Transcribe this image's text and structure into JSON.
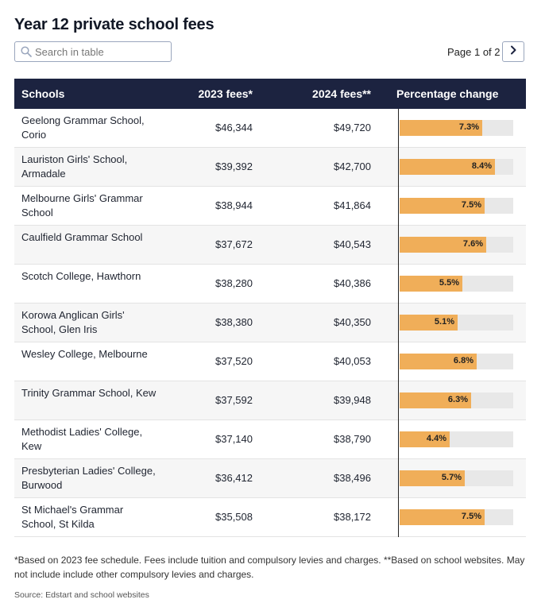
{
  "title": "Year 12 private school fees",
  "search": {
    "placeholder": "Search in table",
    "icon": "search-icon"
  },
  "pager": {
    "text": "Page 1 of 2",
    "next_icon": "chevron-right-icon"
  },
  "table": {
    "headers": {
      "school": "Schools",
      "fees_2023": "2023 fees*",
      "fees_2024": "2024 fees**",
      "pct": "Percentage change"
    },
    "bar_color": "#f0ae59",
    "rows": [
      {
        "school": "Geelong Grammar School, Corio",
        "fees_2023": "$46,344",
        "fees_2024": "$49,720",
        "pct_label": "7.3%",
        "pct": 7.3
      },
      {
        "school": "Lauriston Girls' School, Armadale",
        "fees_2023": "$39,392",
        "fees_2024": "$42,700",
        "pct_label": "8.4%",
        "pct": 8.4
      },
      {
        "school": "Melbourne Girls' Grammar School",
        "fees_2023": "$38,944",
        "fees_2024": "$41,864",
        "pct_label": "7.5%",
        "pct": 7.5
      },
      {
        "school": "Caulfield Grammar School",
        "fees_2023": "$37,672",
        "fees_2024": "$40,543",
        "pct_label": "7.6%",
        "pct": 7.6
      },
      {
        "school": "Scotch College, Hawthorn",
        "fees_2023": "$38,280",
        "fees_2024": "$40,386",
        "pct_label": "5.5%",
        "pct": 5.5
      },
      {
        "school": "Korowa Anglican Girls' School, Glen Iris",
        "fees_2023": "$38,380",
        "fees_2024": "$40,350",
        "pct_label": "5.1%",
        "pct": 5.1
      },
      {
        "school": "Wesley College, Melbourne",
        "fees_2023": "$37,520",
        "fees_2024": "$40,053",
        "pct_label": "6.8%",
        "pct": 6.8
      },
      {
        "school": "Trinity Grammar School, Kew",
        "fees_2023": "$37,592",
        "fees_2024": "$39,948",
        "pct_label": "6.3%",
        "pct": 6.3
      },
      {
        "school": "Methodist Ladies' College, Kew",
        "fees_2023": "$37,140",
        "fees_2024": "$38,790",
        "pct_label": "4.4%",
        "pct": 4.4
      },
      {
        "school": "Presbyterian Ladies' College, Burwood",
        "fees_2023": "$36,412",
        "fees_2024": "$38,496",
        "pct_label": "5.7%",
        "pct": 5.7
      },
      {
        "school": "St Michael's Grammar School, St Kilda",
        "fees_2023": "$35,508",
        "fees_2024": "$38,172",
        "pct_label": "7.5%",
        "pct": 7.5
      }
    ]
  },
  "footnote": "*Based on 2023 fee schedule. Fees include tuition and compulsory levies and charges. **Based on school websites. May not include include other compulsory levies and charges.",
  "source": "Source: Edstart and school websites"
}
